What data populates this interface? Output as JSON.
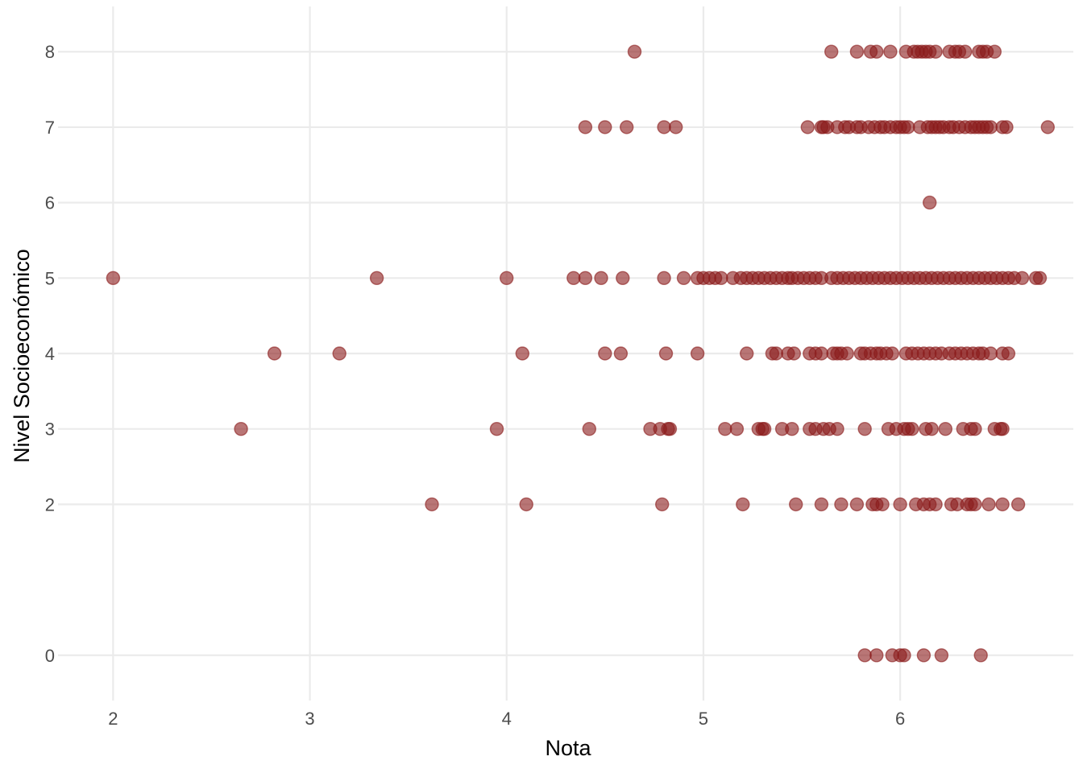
{
  "chart_data": {
    "type": "scatter",
    "title": "",
    "xlabel": "Nota",
    "ylabel": "Nivel Socioeconómico",
    "xlim": [
      1.72,
      6.88
    ],
    "ylim": [
      -0.6,
      8.6
    ],
    "x_ticks": [
      "2",
      "3",
      "4",
      "5",
      "6"
    ],
    "x_tick_values": [
      2,
      3,
      4,
      5,
      6
    ],
    "y_ticks": [
      "0",
      "2",
      "3",
      "4",
      "5",
      "6",
      "7",
      "8"
    ],
    "y_tick_values": [
      0,
      2,
      3,
      4,
      5,
      6,
      7,
      8
    ],
    "grid": true,
    "legend": "none",
    "colors": {
      "point_fill": "#8B1A1A",
      "point_opacity": 0.6,
      "grid": "#ebebeb",
      "tick_text": "#4d4d4d",
      "background": "#ffffff"
    },
    "series": [
      {
        "points": [
          [
            4.65,
            8
          ],
          [
            5.65,
            8
          ],
          [
            5.78,
            8
          ],
          [
            5.85,
            8
          ],
          [
            5.88,
            8
          ],
          [
            5.95,
            8
          ],
          [
            6.03,
            8
          ],
          [
            6.07,
            8
          ],
          [
            6.09,
            8
          ],
          [
            6.11,
            8
          ],
          [
            6.13,
            8
          ],
          [
            6.15,
            8
          ],
          [
            6.18,
            8
          ],
          [
            6.25,
            8
          ],
          [
            6.28,
            8
          ],
          [
            6.3,
            8
          ],
          [
            6.33,
            8
          ],
          [
            6.4,
            8
          ],
          [
            6.42,
            8
          ],
          [
            6.44,
            8
          ],
          [
            6.48,
            8
          ],
          [
            4.4,
            7
          ],
          [
            4.5,
            7
          ],
          [
            4.61,
            7
          ],
          [
            4.8,
            7
          ],
          [
            4.86,
            7
          ],
          [
            5.53,
            7
          ],
          [
            5.6,
            7
          ],
          [
            5.61,
            7
          ],
          [
            5.63,
            7
          ],
          [
            5.68,
            7
          ],
          [
            5.72,
            7
          ],
          [
            5.74,
            7
          ],
          [
            5.78,
            7
          ],
          [
            5.8,
            7
          ],
          [
            5.84,
            7
          ],
          [
            5.87,
            7
          ],
          [
            5.9,
            7
          ],
          [
            5.92,
            7
          ],
          [
            5.95,
            7
          ],
          [
            5.98,
            7
          ],
          [
            6.0,
            7
          ],
          [
            6.02,
            7
          ],
          [
            6.04,
            7
          ],
          [
            6.1,
            7
          ],
          [
            6.14,
            7
          ],
          [
            6.16,
            7
          ],
          [
            6.18,
            7
          ],
          [
            6.2,
            7
          ],
          [
            6.22,
            7
          ],
          [
            6.25,
            7
          ],
          [
            6.27,
            7
          ],
          [
            6.3,
            7
          ],
          [
            6.33,
            7
          ],
          [
            6.36,
            7
          ],
          [
            6.38,
            7
          ],
          [
            6.4,
            7
          ],
          [
            6.42,
            7
          ],
          [
            6.44,
            7
          ],
          [
            6.46,
            7
          ],
          [
            6.52,
            7
          ],
          [
            6.54,
            7
          ],
          [
            6.75,
            7
          ],
          [
            6.15,
            6
          ],
          [
            2.0,
            5
          ],
          [
            3.34,
            5
          ],
          [
            4.0,
            5
          ],
          [
            4.34,
            5
          ],
          [
            4.4,
            5
          ],
          [
            4.48,
            5
          ],
          [
            4.59,
            5
          ],
          [
            4.8,
            5
          ],
          [
            4.9,
            5
          ],
          [
            4.97,
            5
          ],
          [
            5.0,
            5
          ],
          [
            5.03,
            5
          ],
          [
            5.06,
            5
          ],
          [
            5.09,
            5
          ],
          [
            5.15,
            5
          ],
          [
            5.19,
            5
          ],
          [
            5.22,
            5
          ],
          [
            5.25,
            5
          ],
          [
            5.28,
            5
          ],
          [
            5.31,
            5
          ],
          [
            5.34,
            5
          ],
          [
            5.37,
            5
          ],
          [
            5.4,
            5
          ],
          [
            5.43,
            5
          ],
          [
            5.45,
            5
          ],
          [
            5.48,
            5
          ],
          [
            5.51,
            5
          ],
          [
            5.54,
            5
          ],
          [
            5.57,
            5
          ],
          [
            5.6,
            5
          ],
          [
            5.65,
            5
          ],
          [
            5.68,
            5
          ],
          [
            5.71,
            5
          ],
          [
            5.74,
            5
          ],
          [
            5.77,
            5
          ],
          [
            5.8,
            5
          ],
          [
            5.83,
            5
          ],
          [
            5.86,
            5
          ],
          [
            5.89,
            5
          ],
          [
            5.92,
            5
          ],
          [
            5.95,
            5
          ],
          [
            5.98,
            5
          ],
          [
            6.01,
            5
          ],
          [
            6.04,
            5
          ],
          [
            6.07,
            5
          ],
          [
            6.1,
            5
          ],
          [
            6.13,
            5
          ],
          [
            6.16,
            5
          ],
          [
            6.19,
            5
          ],
          [
            6.22,
            5
          ],
          [
            6.25,
            5
          ],
          [
            6.28,
            5
          ],
          [
            6.31,
            5
          ],
          [
            6.34,
            5
          ],
          [
            6.37,
            5
          ],
          [
            6.4,
            5
          ],
          [
            6.43,
            5
          ],
          [
            6.46,
            5
          ],
          [
            6.49,
            5
          ],
          [
            6.52,
            5
          ],
          [
            6.55,
            5
          ],
          [
            6.58,
            5
          ],
          [
            6.62,
            5
          ],
          [
            6.69,
            5
          ],
          [
            6.71,
            5
          ],
          [
            2.82,
            4
          ],
          [
            3.15,
            4
          ],
          [
            4.08,
            4
          ],
          [
            4.5,
            4
          ],
          [
            4.58,
            4
          ],
          [
            4.81,
            4
          ],
          [
            4.97,
            4
          ],
          [
            5.22,
            4
          ],
          [
            5.35,
            4
          ],
          [
            5.37,
            4
          ],
          [
            5.43,
            4
          ],
          [
            5.46,
            4
          ],
          [
            5.54,
            4
          ],
          [
            5.57,
            4
          ],
          [
            5.6,
            4
          ],
          [
            5.66,
            4
          ],
          [
            5.68,
            4
          ],
          [
            5.7,
            4
          ],
          [
            5.73,
            4
          ],
          [
            5.8,
            4
          ],
          [
            5.82,
            4
          ],
          [
            5.85,
            4
          ],
          [
            5.88,
            4
          ],
          [
            5.9,
            4
          ],
          [
            5.93,
            4
          ],
          [
            5.96,
            4
          ],
          [
            6.03,
            4
          ],
          [
            6.06,
            4
          ],
          [
            6.09,
            4
          ],
          [
            6.12,
            4
          ],
          [
            6.15,
            4
          ],
          [
            6.18,
            4
          ],
          [
            6.21,
            4
          ],
          [
            6.25,
            4
          ],
          [
            6.28,
            4
          ],
          [
            6.31,
            4
          ],
          [
            6.34,
            4
          ],
          [
            6.37,
            4
          ],
          [
            6.4,
            4
          ],
          [
            6.42,
            4
          ],
          [
            6.46,
            4
          ],
          [
            6.52,
            4
          ],
          [
            6.55,
            4
          ],
          [
            2.65,
            3
          ],
          [
            3.95,
            3
          ],
          [
            4.42,
            3
          ],
          [
            4.73,
            3
          ],
          [
            4.78,
            3
          ],
          [
            4.82,
            3
          ],
          [
            4.83,
            3
          ],
          [
            5.11,
            3
          ],
          [
            5.17,
            3
          ],
          [
            5.28,
            3
          ],
          [
            5.3,
            3
          ],
          [
            5.31,
            3
          ],
          [
            5.4,
            3
          ],
          [
            5.45,
            3
          ],
          [
            5.54,
            3
          ],
          [
            5.57,
            3
          ],
          [
            5.61,
            3
          ],
          [
            5.64,
            3
          ],
          [
            5.68,
            3
          ],
          [
            5.82,
            3
          ],
          [
            5.94,
            3
          ],
          [
            5.98,
            3
          ],
          [
            6.02,
            3
          ],
          [
            6.04,
            3
          ],
          [
            6.06,
            3
          ],
          [
            6.13,
            3
          ],
          [
            6.16,
            3
          ],
          [
            6.23,
            3
          ],
          [
            6.32,
            3
          ],
          [
            6.36,
            3
          ],
          [
            6.38,
            3
          ],
          [
            6.48,
            3
          ],
          [
            6.51,
            3
          ],
          [
            6.52,
            3
          ],
          [
            3.62,
            2
          ],
          [
            4.1,
            2
          ],
          [
            4.79,
            2
          ],
          [
            5.2,
            2
          ],
          [
            5.47,
            2
          ],
          [
            5.6,
            2
          ],
          [
            5.7,
            2
          ],
          [
            5.78,
            2
          ],
          [
            5.86,
            2
          ],
          [
            5.88,
            2
          ],
          [
            5.91,
            2
          ],
          [
            6.0,
            2
          ],
          [
            6.08,
            2
          ],
          [
            6.12,
            2
          ],
          [
            6.15,
            2
          ],
          [
            6.18,
            2
          ],
          [
            6.26,
            2
          ],
          [
            6.29,
            2
          ],
          [
            6.34,
            2
          ],
          [
            6.36,
            2
          ],
          [
            6.38,
            2
          ],
          [
            6.45,
            2
          ],
          [
            6.52,
            2
          ],
          [
            6.6,
            2
          ],
          [
            5.82,
            0
          ],
          [
            5.88,
            0
          ],
          [
            5.96,
            0
          ],
          [
            6.0,
            0
          ],
          [
            6.02,
            0
          ],
          [
            6.12,
            0
          ],
          [
            6.21,
            0
          ],
          [
            6.41,
            0
          ]
        ]
      }
    ]
  }
}
